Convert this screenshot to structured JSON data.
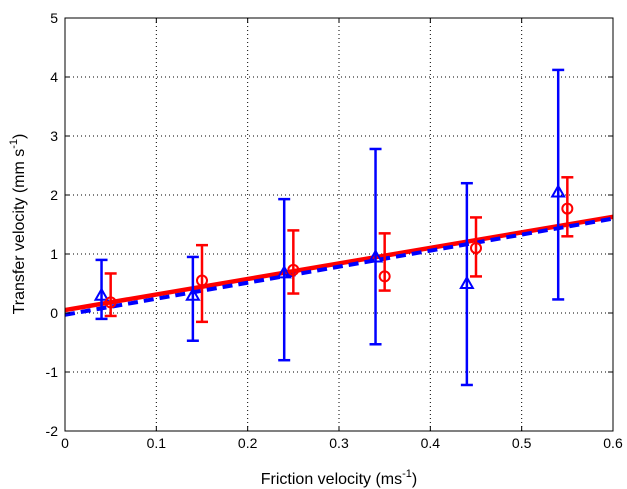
{
  "chart_data": {
    "type": "scatter",
    "title": "",
    "xlabel": "Friction velocity (ms⁻¹)",
    "xlabel_parts": [
      "Friction velocity (ms",
      "-1",
      ")"
    ],
    "ylabel": "Transfer velocity (mm s⁻¹)",
    "ylabel_parts": [
      "Transfer velocity (mm s",
      "-1",
      ")"
    ],
    "xlim": [
      0,
      0.6
    ],
    "ylim": [
      -2,
      5
    ],
    "xticks": [
      "0",
      "0.1",
      "0.2",
      "0.3",
      "0.4",
      "0.5",
      "0.6"
    ],
    "yticks": [
      "-2",
      "-1",
      "0",
      "1",
      "2",
      "3",
      "4",
      "5"
    ],
    "grid": true,
    "series": [
      {
        "color": "#0000ff",
        "marker": "triangle",
        "points": [
          {
            "x": 0.04,
            "y": 0.3,
            "ylow": -0.1,
            "yhigh": 0.9
          },
          {
            "x": 0.14,
            "y": 0.3,
            "ylow": -0.47,
            "yhigh": 0.95
          },
          {
            "x": 0.24,
            "y": 0.68,
            "ylow": -0.8,
            "yhigh": 1.93
          },
          {
            "x": 0.34,
            "y": 0.95,
            "ylow": -0.53,
            "yhigh": 2.78
          },
          {
            "x": 0.44,
            "y": 0.5,
            "ylow": -1.22,
            "yhigh": 2.2
          },
          {
            "x": 0.54,
            "y": 2.05,
            "ylow": 0.23,
            "yhigh": 4.12
          }
        ]
      },
      {
        "color": "#ff0000",
        "marker": "circle",
        "points": [
          {
            "x": 0.05,
            "y": 0.18,
            "ylow": -0.05,
            "yhigh": 0.67
          },
          {
            "x": 0.15,
            "y": 0.55,
            "ylow": -0.15,
            "yhigh": 1.15
          },
          {
            "x": 0.25,
            "y": 0.73,
            "ylow": 0.33,
            "yhigh": 1.4
          },
          {
            "x": 0.35,
            "y": 0.62,
            "ylow": 0.38,
            "yhigh": 1.35
          },
          {
            "x": 0.45,
            "y": 1.1,
            "ylow": 0.62,
            "yhigh": 1.62
          },
          {
            "x": 0.55,
            "y": 1.77,
            "ylow": 1.3,
            "yhigh": 2.3
          }
        ]
      }
    ],
    "fit_lines": [
      {
        "color": "#ff0000",
        "style": "solid",
        "x": [
          0,
          0.6
        ],
        "y": [
          0.05,
          1.63
        ]
      },
      {
        "color": "#0000ff",
        "style": "dashed",
        "x": [
          0,
          0.6
        ],
        "y": [
          -0.03,
          1.6
        ]
      }
    ]
  }
}
